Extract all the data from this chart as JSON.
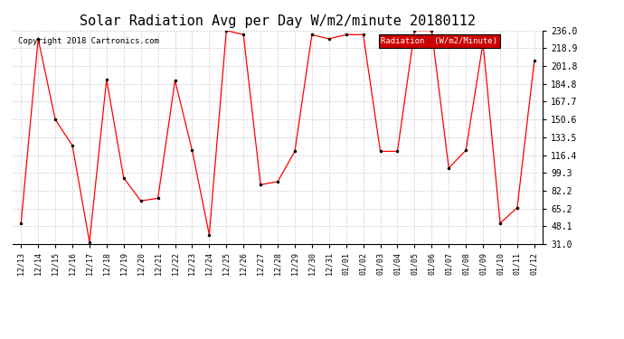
{
  "title": "Solar Radiation Avg per Day W/m2/minute 20180112",
  "copyright": "Copyright 2018 Cartronics.com",
  "legend_label": "Radiation  (W/m2/Minute)",
  "dates": [
    "12/13",
    "12/14",
    "12/15",
    "12/16",
    "12/17",
    "12/18",
    "12/19",
    "12/20",
    "12/21",
    "12/22",
    "12/23",
    "12/24",
    "12/25",
    "12/26",
    "12/27",
    "12/28",
    "12/29",
    "12/30",
    "12/31",
    "01/01",
    "01/02",
    "01/03",
    "01/04",
    "01/05",
    "01/06",
    "01/07",
    "01/08",
    "01/09",
    "01/10",
    "01/11",
    "01/12"
  ],
  "values": [
    51.0,
    228.0,
    150.6,
    125.5,
    33.0,
    189.0,
    94.5,
    72.5,
    75.0,
    188.0,
    121.0,
    40.0,
    236.0,
    232.0,
    88.0,
    91.0,
    120.0,
    232.0,
    228.0,
    232.0,
    232.0,
    120.0,
    120.0,
    236.0,
    236.0,
    104.0,
    121.0,
    224.0,
    51.0,
    66.0,
    207.0
  ],
  "line_color": "red",
  "marker_color": "black",
  "marker_size": 3,
  "background_color": "#ffffff",
  "grid_color": "#cccccc",
  "ylim": [
    31.0,
    236.0
  ],
  "yticks": [
    31.0,
    48.1,
    65.2,
    82.2,
    99.3,
    116.4,
    133.5,
    150.6,
    167.7,
    184.8,
    201.8,
    218.9,
    236.0
  ],
  "legend_bg": "#cc0000",
  "legend_text_color": "#ffffff",
  "title_fontsize": 11,
  "copyright_fontsize": 6.5,
  "tick_fontsize": 6,
  "ytick_fontsize": 7
}
